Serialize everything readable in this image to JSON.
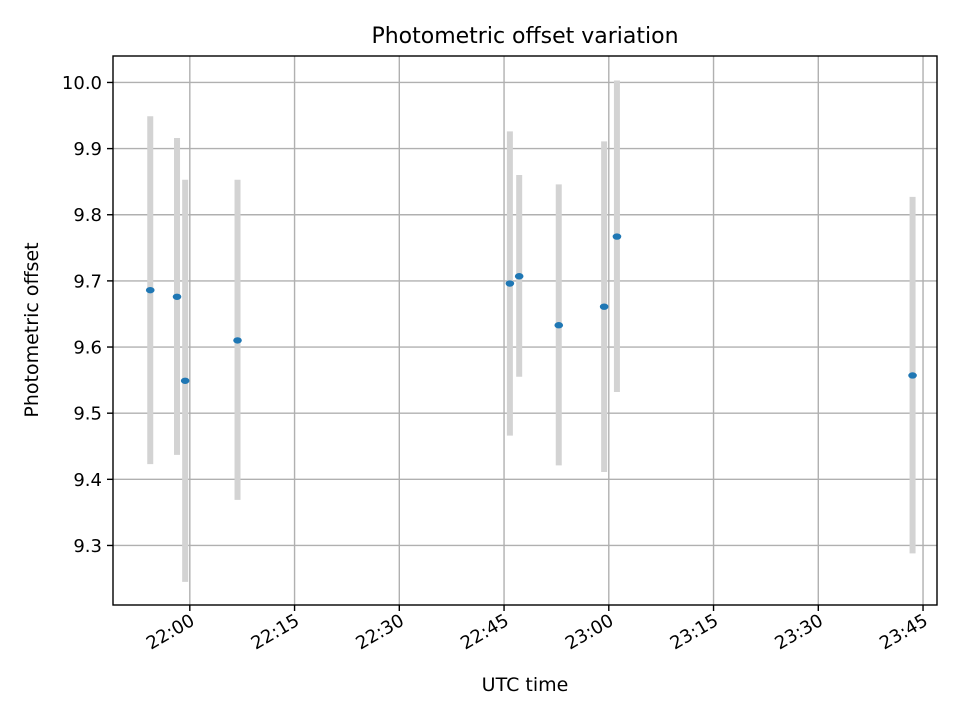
{
  "chart_data": {
    "type": "scatter",
    "title": "Photometric offset variation",
    "xlabel": "UTC time",
    "ylabel": "Photometric offset",
    "xlim": [
      "21:49",
      "23:47"
    ],
    "ylim": [
      9.21,
      10.04
    ],
    "grid": true,
    "x_ticks": [
      "22:00",
      "22:15",
      "22:30",
      "22:45",
      "23:00",
      "23:15",
      "23:30",
      "23:45"
    ],
    "y_ticks": [
      "9.3",
      "9.4",
      "9.5",
      "9.6",
      "9.7",
      "9.8",
      "9.9",
      "10.0"
    ],
    "series": [
      {
        "colors": {
          "point": "#1f77b4",
          "errorbar": "#d3d3d3"
        },
        "points": [
          {
            "x": "21:54:20",
            "y": 9.686,
            "low": 9.423,
            "high": 9.949
          },
          {
            "x": "21:58:10",
            "y": 9.676,
            "low": 9.437,
            "high": 9.916
          },
          {
            "x": "21:59:20",
            "y": 9.549,
            "low": 9.245,
            "high": 9.853
          },
          {
            "x": "22:06:50",
            "y": 9.61,
            "low": 9.369,
            "high": 9.853
          },
          {
            "x": "22:45:50",
            "y": 9.696,
            "low": 9.466,
            "high": 9.926
          },
          {
            "x": "22:47:10",
            "y": 9.707,
            "low": 9.555,
            "high": 9.86
          },
          {
            "x": "22:52:50",
            "y": 9.633,
            "low": 9.421,
            "high": 9.846
          },
          {
            "x": "22:59:20",
            "y": 9.661,
            "low": 9.411,
            "high": 9.911
          },
          {
            "x": "23:01:10",
            "y": 9.767,
            "low": 9.532,
            "high": 10.003
          },
          {
            "x": "23:43:30",
            "y": 9.557,
            "low": 9.288,
            "high": 9.827
          }
        ]
      }
    ]
  }
}
